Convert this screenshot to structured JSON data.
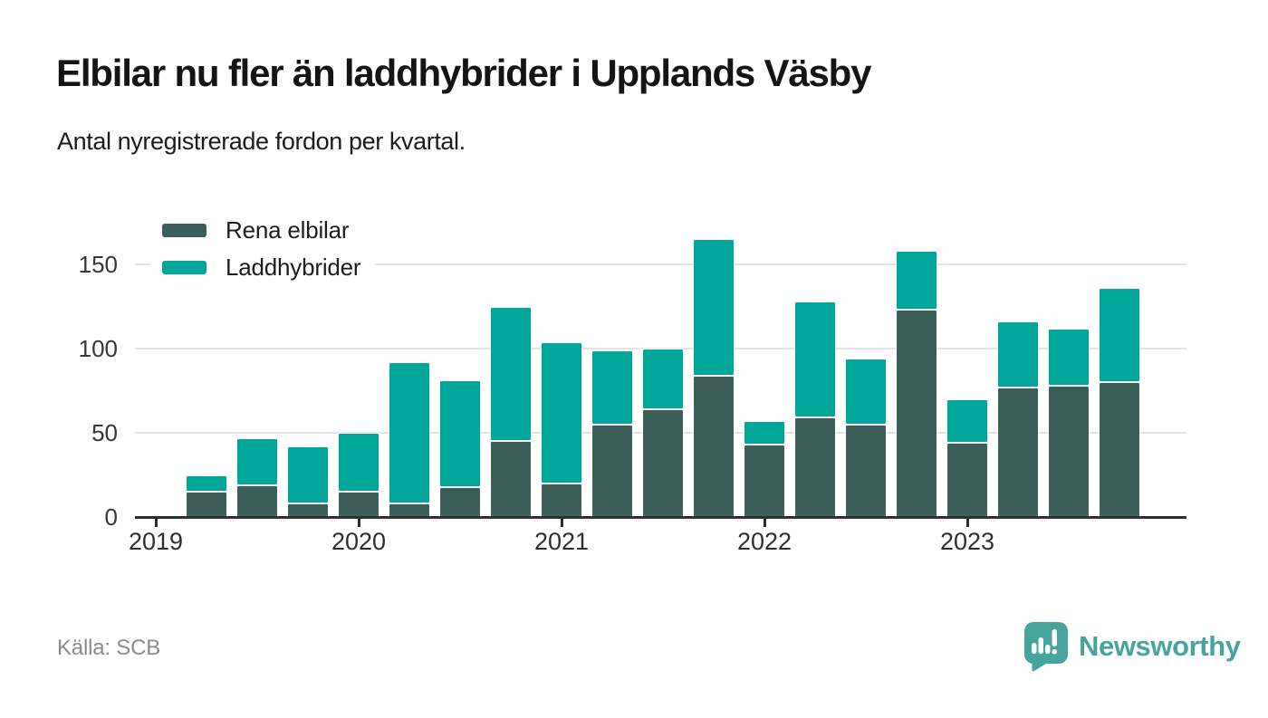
{
  "header": {
    "title": "Elbilar nu fler än laddhybrider i Upplands Väsby",
    "subtitle": "Antal nyregistrerade fordon per kvartal."
  },
  "legend": [
    {
      "label": "Rena elbilar",
      "color": "#3b5e59"
    },
    {
      "label": "Laddhybrider",
      "color": "#00a79a"
    }
  ],
  "chart_data": {
    "type": "bar",
    "stacked": true,
    "title": "Elbilar nu fler än laddhybrider i Upplands Väsby",
    "subtitle": "Antal nyregistrerade fordon per kvartal.",
    "x": [
      "2019 Q1",
      "2019 Q2",
      "2019 Q3",
      "2019 Q4",
      "2020 Q1",
      "2020 Q2",
      "2020 Q3",
      "2020 Q4",
      "2021 Q1",
      "2021 Q2",
      "2021 Q3",
      "2021 Q4",
      "2022 Q1",
      "2022 Q2",
      "2022 Q3",
      "2022 Q4",
      "2023 Q1",
      "2023 Q2",
      "2023 Q3",
      "2023 Q4"
    ],
    "series": [
      {
        "name": "Rena elbilar",
        "color": "#3b5e59",
        "values": [
          0,
          15,
          19,
          8,
          15,
          8,
          18,
          45,
          20,
          55,
          64,
          84,
          43,
          59,
          55,
          123,
          44,
          77,
          78,
          80
        ]
      },
      {
        "name": "Laddhybrider",
        "color": "#00a79a",
        "values": [
          0,
          10,
          28,
          34,
          35,
          84,
          63,
          80,
          84,
          44,
          36,
          81,
          14,
          69,
          39,
          35,
          26,
          39,
          34,
          56
        ]
      }
    ],
    "xticks": [
      "2019",
      "2020",
      "2021",
      "2022",
      "2023"
    ],
    "yticks": [
      0,
      50,
      100,
      150
    ],
    "ylim": [
      0,
      175
    ],
    "grid": "horizontal",
    "legend_position": "top-left"
  },
  "footer": {
    "source": "Källa: SCB",
    "brand": "Newsworthy",
    "brand_color": "#47a49d"
  }
}
